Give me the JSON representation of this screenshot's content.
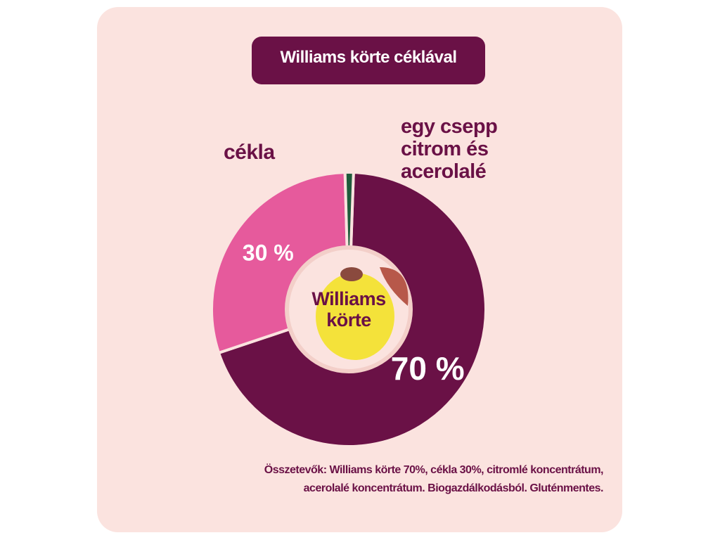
{
  "chart_data": {
    "type": "donut",
    "title": "Williams körte céklával",
    "categories": [
      "Williams körte",
      "cékla",
      "egy csepp citrom és acerolalé"
    ],
    "values": [
      70,
      30,
      1
    ],
    "value_labels": [
      "70 %",
      "30 %",
      null
    ],
    "colors": [
      "#6a1146",
      "#e65a9c",
      "#1f5b3b"
    ],
    "note": "Összetevők: Williams körte 70%, cékla 30%, citromlé koncentrátum, acerolalé koncentrátum. Biogazdálkodásból. Gluténmentes."
  }
}
